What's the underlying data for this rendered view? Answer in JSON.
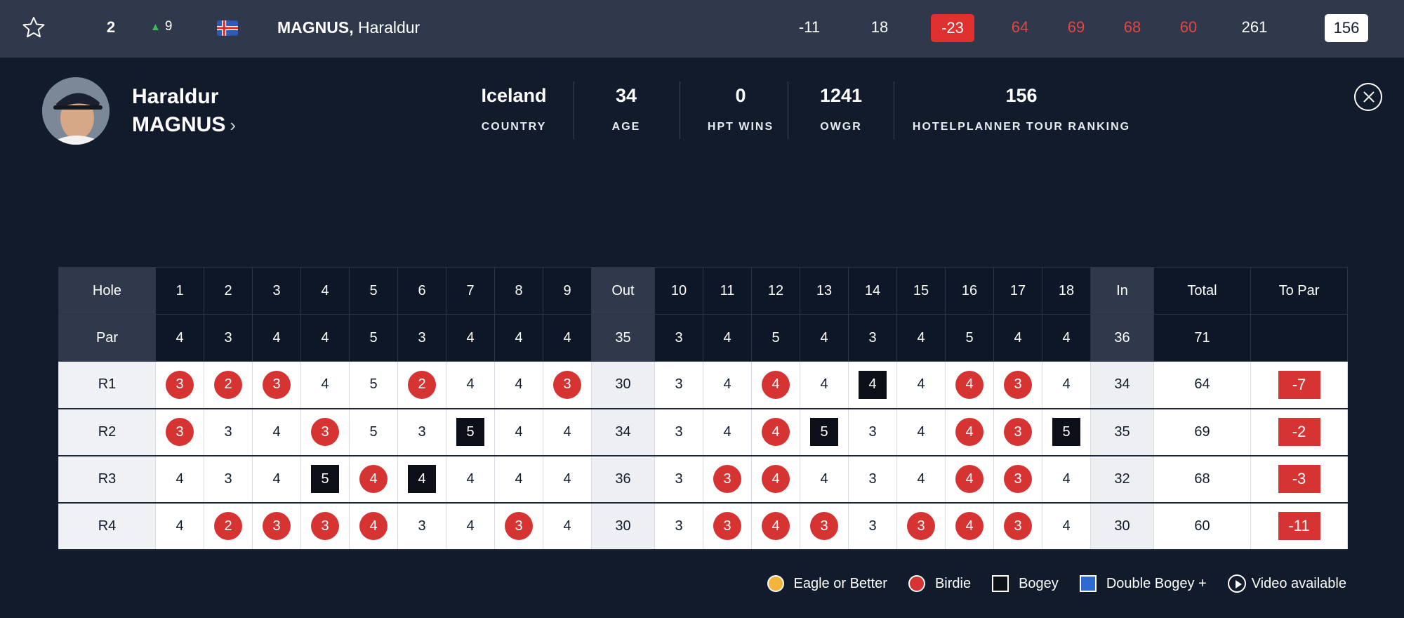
{
  "row": {
    "position": "2",
    "movement": "9",
    "movement_direction": "up",
    "country_flag": "iceland-flag",
    "surname": "MAGNUS,",
    "firstname": "Haraldur",
    "to_par": "-11",
    "thru": "18",
    "total_to_par": "-23",
    "rounds": [
      "64",
      "69",
      "68",
      "60"
    ],
    "total": "261",
    "ranking": "156"
  },
  "profile": {
    "first_name": "Haraldur",
    "last_name": "MAGNUS",
    "stats": [
      {
        "value": "Iceland",
        "label": "COUNTRY"
      },
      {
        "value": "34",
        "label": "AGE"
      },
      {
        "value": "0",
        "label": "HPT WINS"
      },
      {
        "value": "1241",
        "label": "OWGR"
      },
      {
        "value": "156",
        "label": "HOTELPLANNER TOUR RANKING"
      }
    ]
  },
  "scorecard": {
    "hole_label": "Hole",
    "par_label": "Par",
    "out_label": "Out",
    "in_label": "In",
    "total_label": "Total",
    "topar_label": "To Par",
    "holes": [
      "1",
      "2",
      "3",
      "4",
      "5",
      "6",
      "7",
      "8",
      "9",
      "10",
      "11",
      "12",
      "13",
      "14",
      "15",
      "16",
      "17",
      "18"
    ],
    "pars": [
      "4",
      "3",
      "4",
      "4",
      "5",
      "3",
      "4",
      "4",
      "4",
      "3",
      "4",
      "5",
      "4",
      "3",
      "4",
      "5",
      "4",
      "4"
    ],
    "par_out": "35",
    "par_in": "36",
    "par_total": "71",
    "rounds": [
      {
        "label": "R1",
        "scores": [
          "3",
          "2",
          "3",
          "4",
          "5",
          "2",
          "4",
          "4",
          "3",
          "3",
          "4",
          "4",
          "4",
          "4",
          "4",
          "4",
          "3",
          "4"
        ],
        "out": "30",
        "in": "34",
        "total": "64",
        "to_par": "-7"
      },
      {
        "label": "R2",
        "scores": [
          "3",
          "3",
          "4",
          "3",
          "5",
          "3",
          "5",
          "4",
          "4",
          "3",
          "4",
          "4",
          "5",
          "3",
          "4",
          "4",
          "3",
          "5"
        ],
        "out": "34",
        "in": "35",
        "total": "69",
        "to_par": "-2"
      },
      {
        "label": "R3",
        "scores": [
          "4",
          "3",
          "4",
          "5",
          "4",
          "4",
          "4",
          "4",
          "4",
          "3",
          "3",
          "4",
          "4",
          "3",
          "4",
          "4",
          "3",
          "4"
        ],
        "out": "36",
        "in": "32",
        "total": "68",
        "to_par": "-3"
      },
      {
        "label": "R4",
        "scores": [
          "4",
          "2",
          "3",
          "3",
          "4",
          "3",
          "4",
          "3",
          "4",
          "3",
          "3",
          "4",
          "3",
          "3",
          "3",
          "4",
          "3",
          "4"
        ],
        "out": "30",
        "in": "30",
        "total": "60",
        "to_par": "-11"
      }
    ]
  },
  "legend": [
    {
      "label": "Eagle or Better",
      "icon": "eagle-marker"
    },
    {
      "label": "Birdie",
      "icon": "birdie-marker"
    },
    {
      "label": "Bogey",
      "icon": "bogey-marker"
    },
    {
      "label": "Double Bogey +",
      "icon": "double-bogey-marker"
    },
    {
      "label": "Video available",
      "icon": "play-icon"
    }
  ],
  "colors": {
    "background": "#111b2b",
    "row_bar": "#2f394b",
    "birdie": "#d63333",
    "eagle": "#f2b43a",
    "bogey": "#0d0f18",
    "double_bogey": "#2f6ad0",
    "movement_up": "#3cbf5a"
  }
}
